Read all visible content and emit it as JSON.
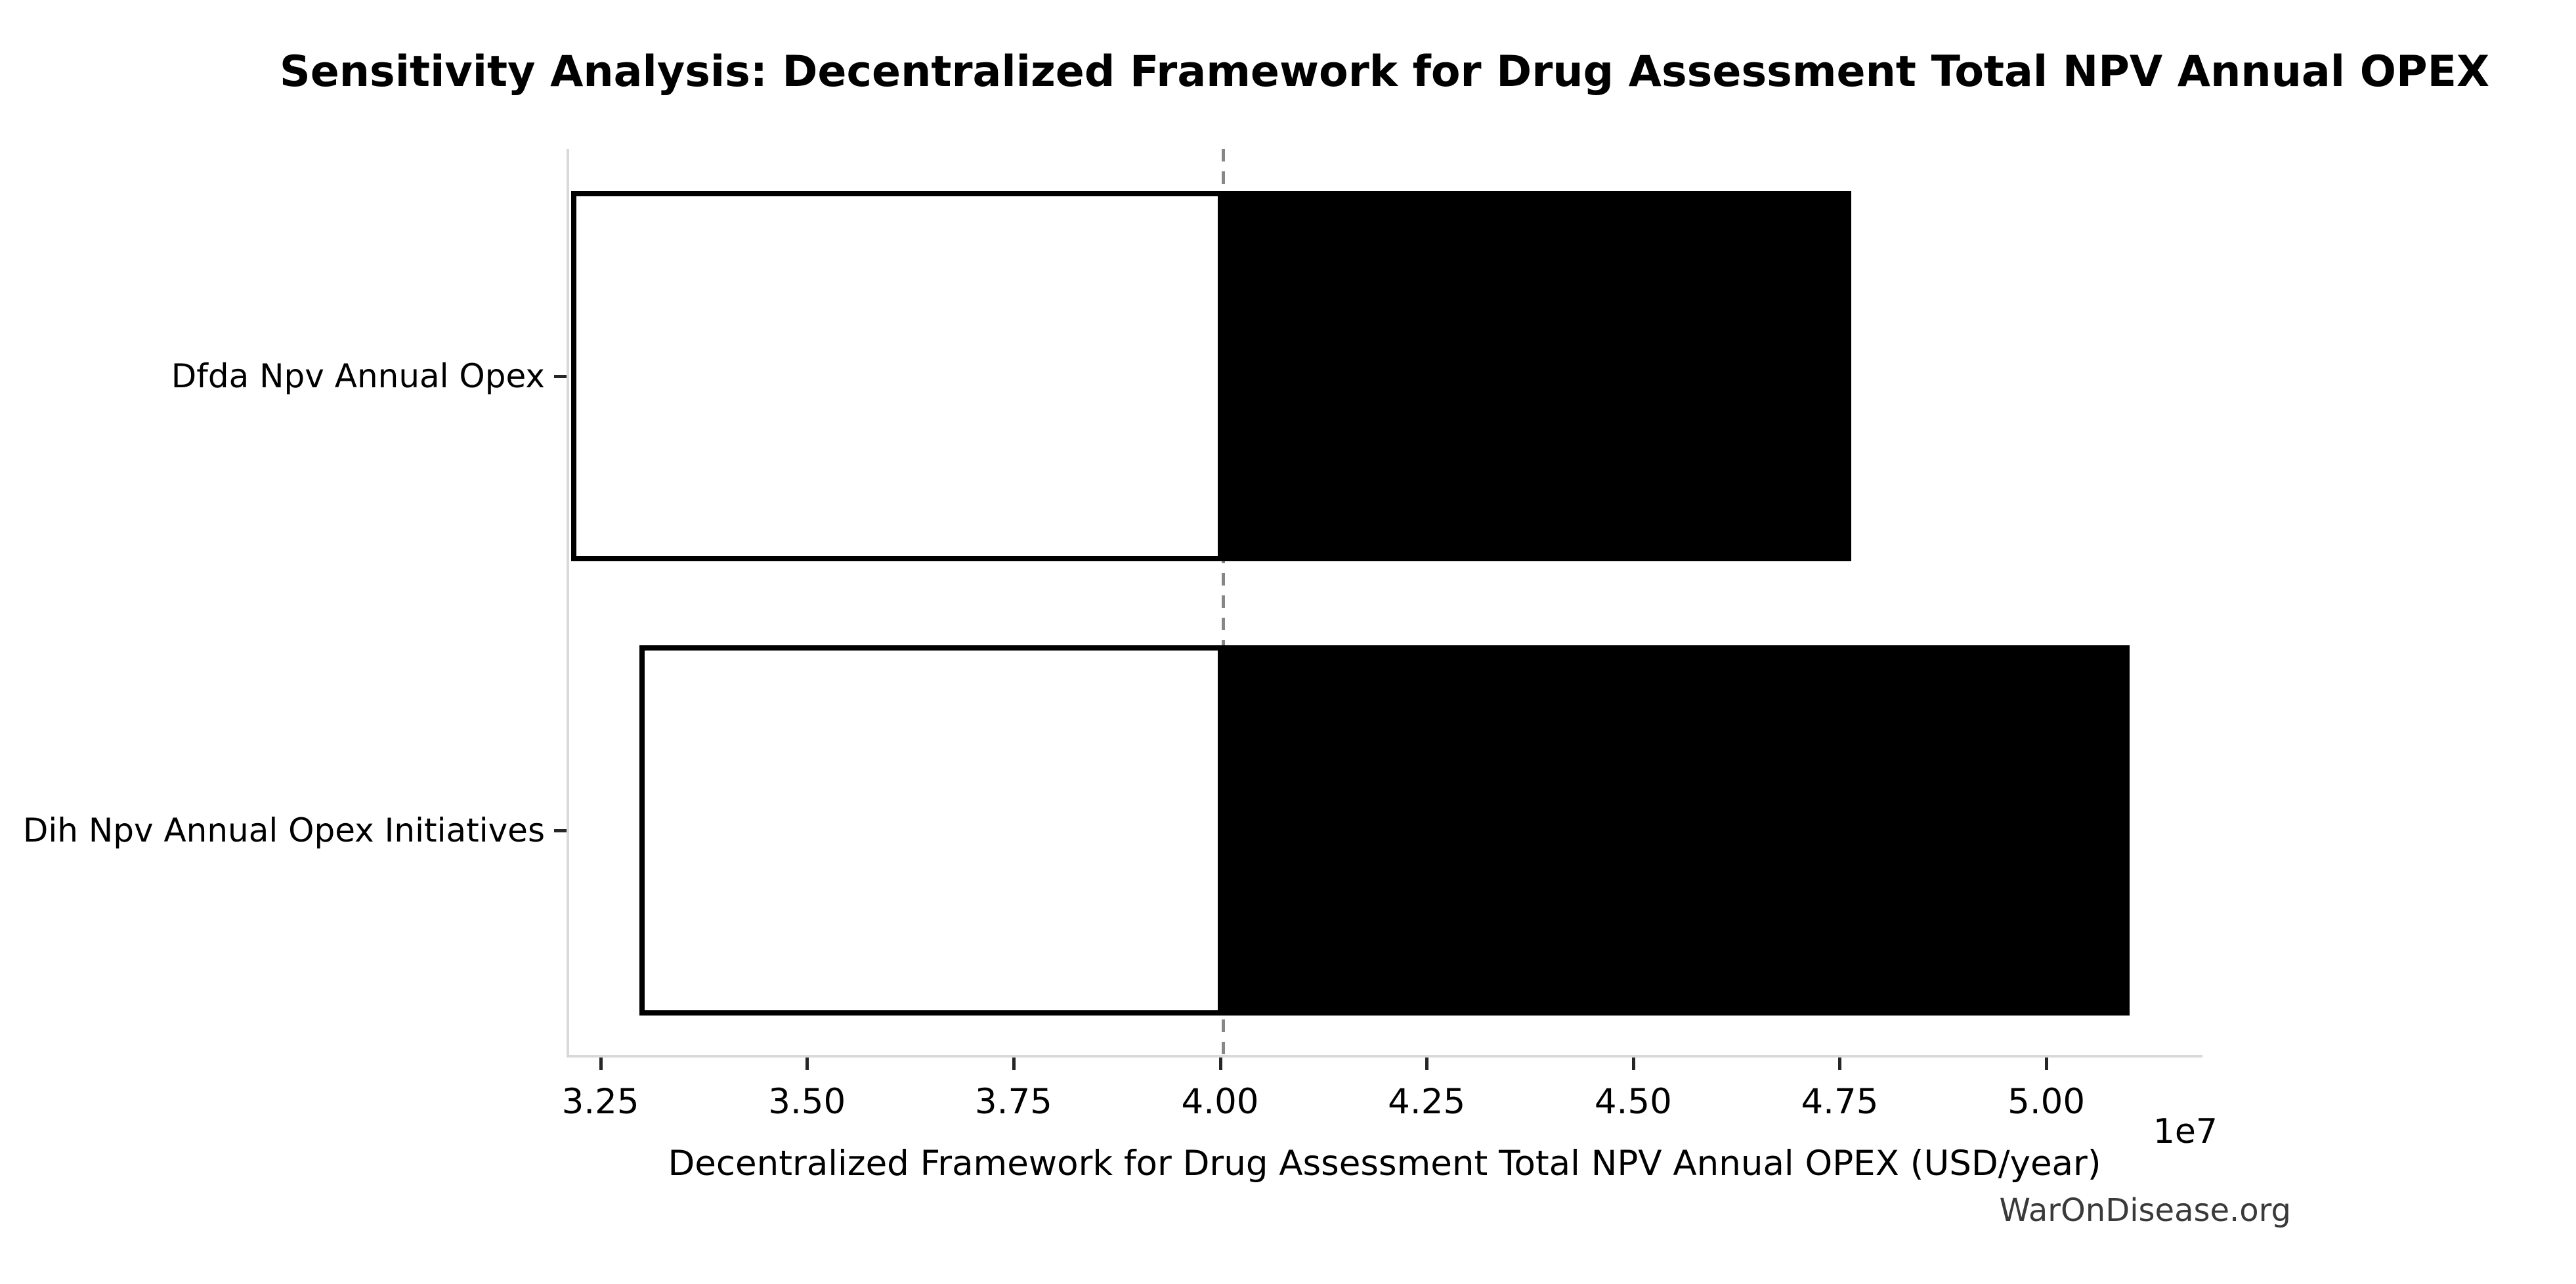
{
  "title": "Sensitivity Analysis: Decentralized Framework for Drug Assessment Total NPV Annual OPEX",
  "watermark": "WarOnDisease.org",
  "chart_data": {
    "type": "bar",
    "subtype": "tornado",
    "orientation": "horizontal",
    "title": "Sensitivity Analysis: Decentralized Framework for Drug Assessment Total NPV Annual OPEX",
    "xlabel": "Decentralized Framework for Drug Assessment Total NPV Annual OPEX (USD/year)",
    "ylabel": "",
    "x_offset_label": "1e7",
    "base_value": 40000000,
    "categories": [
      "Dfda Npv Annual Opex",
      "Dih Npv Annual Opex Initiatives"
    ],
    "series": [
      {
        "name": "Dfda Npv Annual Opex",
        "low": 32110000,
        "high": 47610000
      },
      {
        "name": "Dih Npv Annual Opex Initiatives",
        "low": 32940000,
        "high": 50980000
      }
    ],
    "xlim": [
      32090000,
      51890000
    ],
    "xticks": [
      32500000,
      35000000,
      37500000,
      40000000,
      42500000,
      45000000,
      47500000,
      50000000
    ],
    "xtick_labels": [
      "3.25",
      "3.50",
      "3.75",
      "4.00",
      "4.25",
      "4.50",
      "4.75",
      "5.00"
    ],
    "grid": false,
    "legend": "none",
    "colors": {
      "low_fill": "#ffffff",
      "high_fill": "#000000",
      "bar_edge": "#000000",
      "baseline_dash": "#878787",
      "spine": "#d9d9d9",
      "tick_mark": "#262626",
      "text": "#000000",
      "watermark": "#3a3a3a",
      "background": "#ffffff"
    }
  }
}
